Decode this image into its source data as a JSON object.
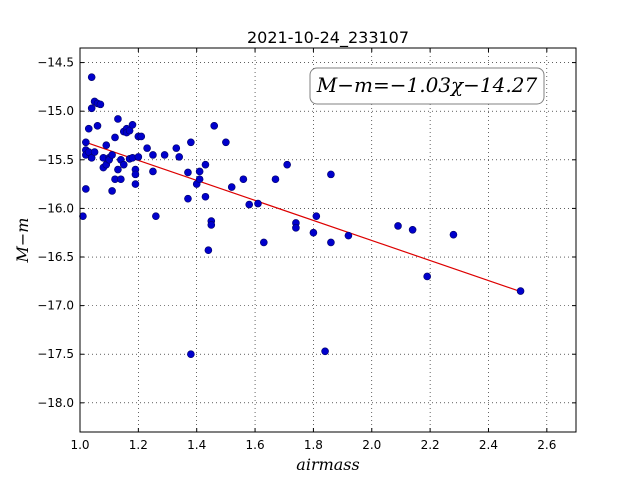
{
  "chart_data": {
    "type": "scatter",
    "title": "2021-10-24_233107",
    "xlabel": "airmass",
    "ylabel": "M−m",
    "xlim": [
      1.0,
      2.7
    ],
    "ylim": [
      -18.3,
      -14.35
    ],
    "x_ticks": [
      1.0,
      1.2,
      1.4,
      1.6,
      1.8,
      2.0,
      2.2,
      2.4,
      2.6
    ],
    "x_tick_labels": [
      "1.0",
      "1.2",
      "1.4",
      "1.6",
      "1.8",
      "2.0",
      "2.2",
      "2.4",
      "2.6"
    ],
    "y_ticks": [
      -14.5,
      -15.0,
      -15.5,
      -16.0,
      -16.5,
      -17.0,
      -17.5,
      -18.0
    ],
    "y_tick_labels": [
      "−14.5",
      "−15.0",
      "−15.5",
      "−16.0",
      "−16.5",
      "−17.0",
      "−17.5",
      "−18.0"
    ],
    "grid": true,
    "annotation": "M−m=−1.03χ−14.27",
    "annotation_position": "top-right",
    "colors": {
      "points": "#0000cc",
      "point_edge": "#000066",
      "fit_line": "#dd0000"
    },
    "fit": {
      "slope": -1.03,
      "intercept": -14.27,
      "x_range": [
        1.02,
        2.5
      ]
    },
    "points": [
      {
        "x": 1.01,
        "y": -16.08
      },
      {
        "x": 1.02,
        "y": -15.8
      },
      {
        "x": 1.02,
        "y": -15.32
      },
      {
        "x": 1.02,
        "y": -15.4
      },
      {
        "x": 1.02,
        "y": -15.45
      },
      {
        "x": 1.03,
        "y": -15.42
      },
      {
        "x": 1.03,
        "y": -15.18
      },
      {
        "x": 1.04,
        "y": -14.65
      },
      {
        "x": 1.04,
        "y": -14.97
      },
      {
        "x": 1.04,
        "y": -15.48
      },
      {
        "x": 1.05,
        "y": -15.42
      },
      {
        "x": 1.05,
        "y": -14.9
      },
      {
        "x": 1.06,
        "y": -14.92
      },
      {
        "x": 1.06,
        "y": -15.15
      },
      {
        "x": 1.07,
        "y": -14.93
      },
      {
        "x": 1.08,
        "y": -15.48
      },
      {
        "x": 1.08,
        "y": -15.58
      },
      {
        "x": 1.09,
        "y": -15.35
      },
      {
        "x": 1.09,
        "y": -15.55
      },
      {
        "x": 1.1,
        "y": -15.48
      },
      {
        "x": 1.1,
        "y": -15.5
      },
      {
        "x": 1.11,
        "y": -15.45
      },
      {
        "x": 1.11,
        "y": -15.82
      },
      {
        "x": 1.12,
        "y": -15.7
      },
      {
        "x": 1.12,
        "y": -15.27
      },
      {
        "x": 1.13,
        "y": -15.08
      },
      {
        "x": 1.13,
        "y": -15.6
      },
      {
        "x": 1.14,
        "y": -15.5
      },
      {
        "x": 1.14,
        "y": -15.7
      },
      {
        "x": 1.15,
        "y": -15.21
      },
      {
        "x": 1.15,
        "y": -15.55
      },
      {
        "x": 1.16,
        "y": -15.18
      },
      {
        "x": 1.16,
        "y": -15.22
      },
      {
        "x": 1.17,
        "y": -15.49
      },
      {
        "x": 1.17,
        "y": -15.2
      },
      {
        "x": 1.18,
        "y": -15.14
      },
      {
        "x": 1.18,
        "y": -15.48
      },
      {
        "x": 1.19,
        "y": -15.6
      },
      {
        "x": 1.19,
        "y": -15.65
      },
      {
        "x": 1.19,
        "y": -15.75
      },
      {
        "x": 1.2,
        "y": -15.26
      },
      {
        "x": 1.2,
        "y": -15.47
      },
      {
        "x": 1.21,
        "y": -15.26
      },
      {
        "x": 1.23,
        "y": -15.38
      },
      {
        "x": 1.25,
        "y": -15.45
      },
      {
        "x": 1.25,
        "y": -15.62
      },
      {
        "x": 1.26,
        "y": -16.08
      },
      {
        "x": 1.29,
        "y": -15.45
      },
      {
        "x": 1.33,
        "y": -15.38
      },
      {
        "x": 1.34,
        "y": -15.47
      },
      {
        "x": 1.37,
        "y": -15.63
      },
      {
        "x": 1.37,
        "y": -15.9
      },
      {
        "x": 1.38,
        "y": -15.32
      },
      {
        "x": 1.38,
        "y": -17.5
      },
      {
        "x": 1.4,
        "y": -15.75
      },
      {
        "x": 1.41,
        "y": -15.62
      },
      {
        "x": 1.41,
        "y": -15.7
      },
      {
        "x": 1.43,
        "y": -15.55
      },
      {
        "x": 1.43,
        "y": -15.88
      },
      {
        "x": 1.44,
        "y": -16.43
      },
      {
        "x": 1.45,
        "y": -16.13
      },
      {
        "x": 1.45,
        "y": -16.17
      },
      {
        "x": 1.46,
        "y": -15.15
      },
      {
        "x": 1.5,
        "y": -15.32
      },
      {
        "x": 1.52,
        "y": -15.78
      },
      {
        "x": 1.56,
        "y": -15.7
      },
      {
        "x": 1.58,
        "y": -15.96
      },
      {
        "x": 1.61,
        "y": -15.95
      },
      {
        "x": 1.63,
        "y": -16.35
      },
      {
        "x": 1.67,
        "y": -15.7
      },
      {
        "x": 1.71,
        "y": -15.55
      },
      {
        "x": 1.74,
        "y": -16.15
      },
      {
        "x": 1.74,
        "y": -16.2
      },
      {
        "x": 1.8,
        "y": -16.25
      },
      {
        "x": 1.81,
        "y": -16.08
      },
      {
        "x": 1.84,
        "y": -17.47
      },
      {
        "x": 1.86,
        "y": -15.65
      },
      {
        "x": 1.86,
        "y": -16.35
      },
      {
        "x": 1.92,
        "y": -16.28
      },
      {
        "x": 2.09,
        "y": -16.18
      },
      {
        "x": 2.14,
        "y": -16.22
      },
      {
        "x": 2.19,
        "y": -16.7
      },
      {
        "x": 2.28,
        "y": -16.27
      },
      {
        "x": 2.51,
        "y": -16.85
      }
    ]
  }
}
